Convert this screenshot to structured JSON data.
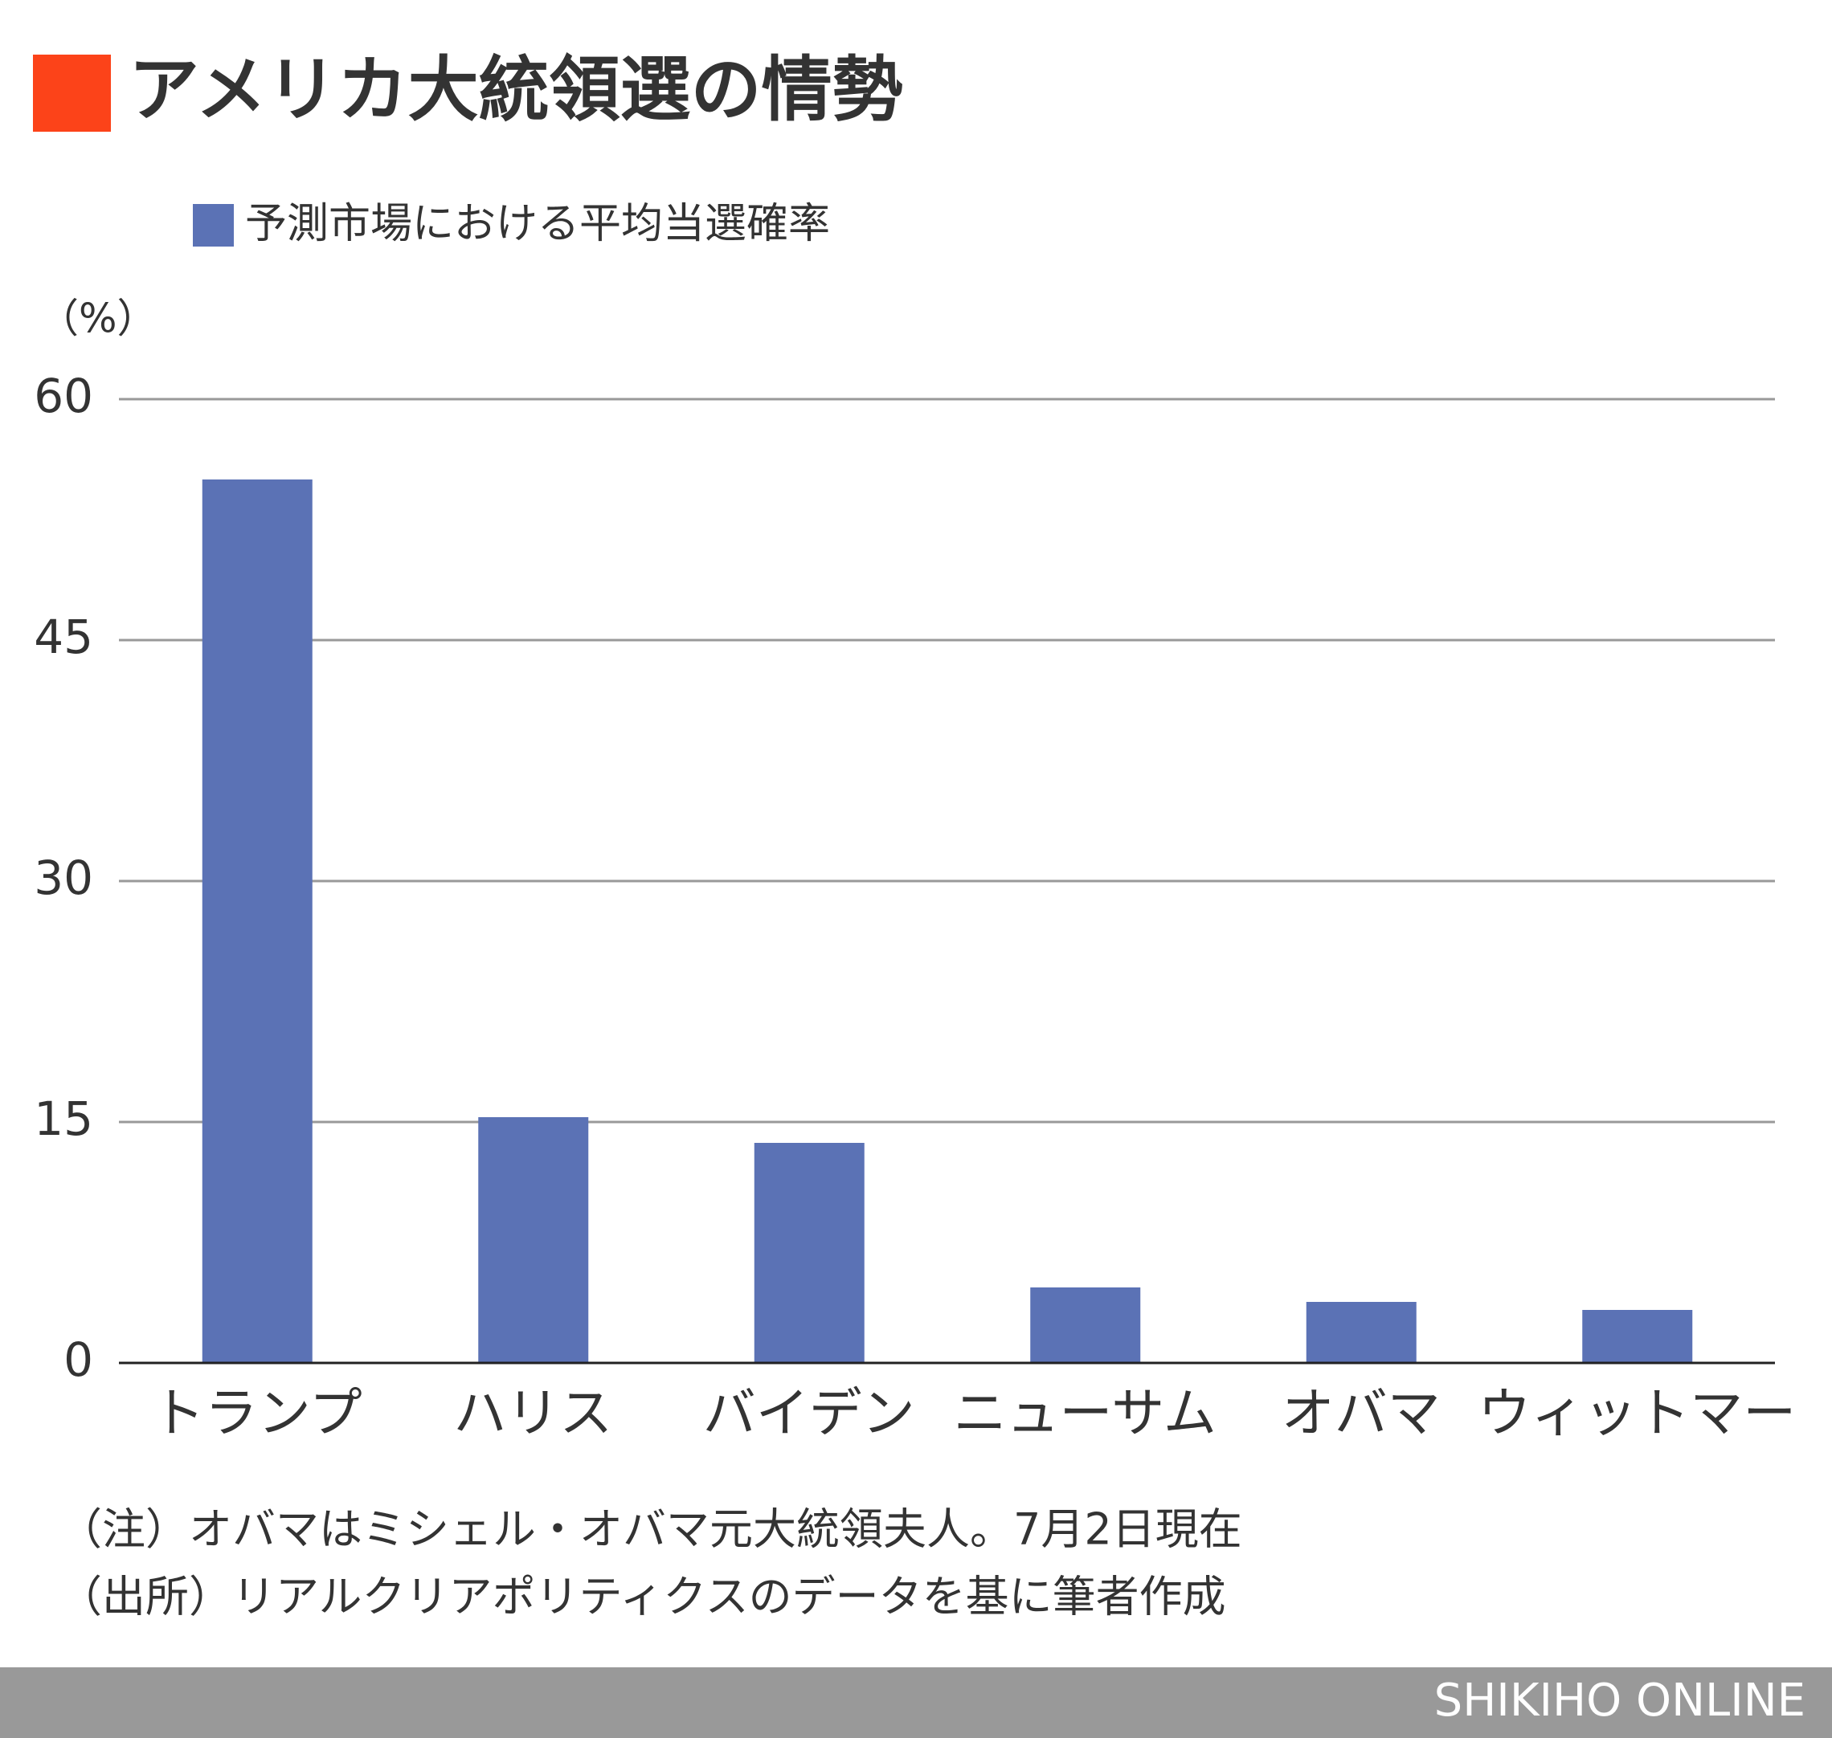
{
  "chart_data": {
    "type": "bar",
    "title": "アメリカ大統領選の情勢",
    "title_marker_color": "#fc4319",
    "y_axis_label": "（%）",
    "categories": [
      "トランプ",
      "ハリス",
      "バイデン",
      "ニューサム",
      "オバマ",
      "ウィットマー"
    ],
    "series": [
      {
        "name": "予測市場における平均当選確率",
        "color": "#5b72b5",
        "values": [
          55,
          15.3,
          13.7,
          4.7,
          3.8,
          3.3
        ]
      }
    ],
    "ylim": [
      0,
      60
    ],
    "yticks": [
      0,
      15,
      30,
      45,
      60
    ],
    "grid": true,
    "notes": [
      "（注）オバマはミシェル・オバマ元大統領夫人。7月2日現在",
      "（出所）リアルクリアポリティクスのデータを基に筆者作成"
    ]
  },
  "footer": {
    "brand": "SHIKIHO ONLINE"
  }
}
